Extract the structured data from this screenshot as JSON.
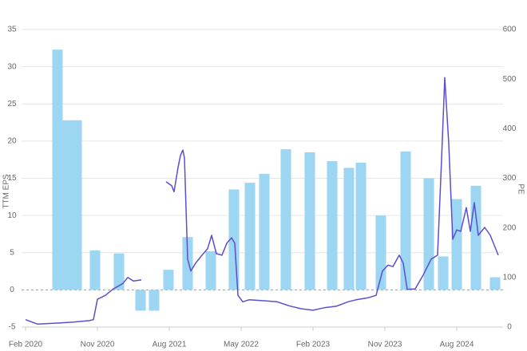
{
  "chart_data": {
    "type": "combo",
    "y_label": "TTM EPS",
    "y2_label": "PE",
    "xlim": [
      -0.5,
      59.8
    ],
    "xticks": [
      {
        "value": 0,
        "label": "Feb 2020"
      },
      {
        "value": 9,
        "label": "Nov 2020"
      },
      {
        "value": 18,
        "label": "Aug 2021"
      },
      {
        "value": 27,
        "label": "May 2022"
      },
      {
        "value": 36,
        "label": "Feb 2023"
      },
      {
        "value": 45,
        "label": "Nov 2023"
      },
      {
        "value": 54,
        "label": "Aug 2024"
      }
    ],
    "ylim": [
      -5,
      35
    ],
    "yticks": [
      -5,
      0,
      5,
      10,
      15,
      20,
      25,
      30,
      35
    ],
    "y2lim": [
      0,
      600
    ],
    "y2ticks": [
      0,
      100,
      200,
      300,
      400,
      500,
      600
    ],
    "grid": true,
    "series": [
      {
        "name": "TTM EPS",
        "type": "bar",
        "color": "#9dd6f3",
        "x": [
          4,
          5.2,
          6.4,
          8.7,
          11.7,
          14.4,
          16.1,
          17.9,
          20.3,
          23.2,
          26.1,
          28.1,
          29.9,
          32.6,
          35.6,
          38.4,
          40.5,
          42.0,
          44.5,
          47.6,
          50.5,
          52.3,
          54.0,
          56.4,
          58.8
        ],
        "values": [
          32.3,
          22.8,
          22.8,
          5.3,
          4.9,
          -2.8,
          -2.8,
          2.7,
          7.1,
          5.2,
          13.5,
          14.4,
          15.6,
          18.9,
          18.5,
          17.3,
          16.4,
          17.1,
          10.0,
          18.6,
          15.0,
          4.5,
          12.2,
          14.0,
          1.7
        ]
      },
      {
        "name": "PE",
        "type": "line",
        "axis": "y2",
        "color": "#5a4fcf",
        "x": [
          0,
          1.5,
          4,
          6,
          8,
          8.5,
          9,
          10,
          11,
          12.2,
          12.8,
          13.5,
          14.5,
          16,
          17.6,
          18.3,
          18.6,
          19.1,
          19.4,
          19.7,
          19.9,
          20.3,
          20.7,
          21.3,
          22.1,
          22.8,
          23.3,
          23.9,
          24.6,
          25.2,
          25.8,
          26.2,
          26.6,
          27.2,
          28.0,
          30.0,
          31.5,
          33.0,
          34.5,
          36.0,
          37.4,
          38.9,
          40.4,
          41.4,
          42.9,
          43.9,
          44.7,
          45.4,
          46.0,
          46.8,
          47.3,
          47.8,
          48.8,
          49.8,
          50.8,
          51.6,
          52.1,
          52.5,
          53.0,
          53.5,
          54.0,
          54.5,
          55.2,
          55.7,
          56.2,
          56.7,
          57.5,
          58.2,
          59.2
        ],
        "values": [
          15,
          6,
          8,
          10,
          13,
          15,
          56,
          64,
          77,
          88,
          100,
          93,
          95,
          null,
          293,
          285,
          273,
          322,
          346,
          357,
          341,
          137,
          113,
          129,
          145,
          158,
          185,
          148,
          145,
          169,
          180,
          169,
          64,
          51,
          55,
          53,
          51,
          43,
          37,
          34,
          39,
          42,
          51,
          55,
          59,
          64,
          113,
          125,
          122,
          145,
          129,
          76,
          77,
          105,
          137,
          145,
          338,
          503,
          370,
          177,
          196,
          193,
          241,
          193,
          251,
          185,
          201,
          185,
          145
        ]
      }
    ]
  }
}
